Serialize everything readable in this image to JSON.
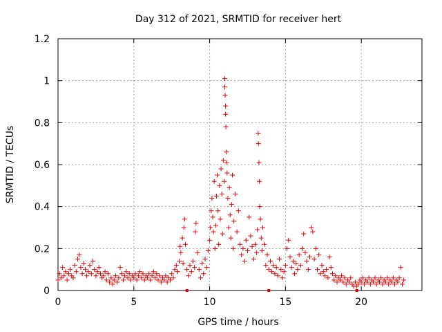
{
  "chart_data": {
    "type": "scatter",
    "title": "Day 312 of 2021, SRMTID for receiver hert",
    "xlabel": "GPS time / hours",
    "ylabel": "SRMTID / TECUs",
    "xlim": [
      0,
      24
    ],
    "ylim": [
      0,
      1.2
    ],
    "xticks": [
      0,
      5,
      10,
      15,
      20
    ],
    "xtick_labels": [
      "0",
      "5",
      "10",
      "15",
      "20"
    ],
    "yticks": [
      0,
      0.2,
      0.4,
      0.6,
      0.8,
      1.0,
      1.2
    ],
    "ytick_labels": [
      "0",
      "0.2",
      "0.4",
      "0.6",
      "0.8",
      "1",
      "1.2"
    ],
    "grid": true,
    "marker": "+",
    "colors": {
      "series": "#e00000",
      "grid": "#a0a0a0",
      "axes": "#000000"
    },
    "series": [
      {
        "name": "SRMTID",
        "points": [
          [
            0.0,
            0.05
          ],
          [
            0.1,
            0.08
          ],
          [
            0.2,
            0.06
          ],
          [
            0.3,
            0.11
          ],
          [
            0.4,
            0.07
          ],
          [
            0.5,
            0.09
          ],
          [
            0.6,
            0.05
          ],
          [
            0.7,
            0.08
          ],
          [
            0.8,
            0.1
          ],
          [
            0.9,
            0.07
          ],
          [
            1.0,
            0.06
          ],
          [
            1.1,
            0.12
          ],
          [
            1.2,
            0.09
          ],
          [
            1.3,
            0.15
          ],
          [
            1.4,
            0.17
          ],
          [
            1.5,
            0.11
          ],
          [
            1.6,
            0.08
          ],
          [
            1.7,
            0.13
          ],
          [
            1.8,
            0.1
          ],
          [
            1.9,
            0.07
          ],
          [
            2.0,
            0.09
          ],
          [
            2.1,
            0.12
          ],
          [
            2.2,
            0.08
          ],
          [
            2.3,
            0.14
          ],
          [
            2.4,
            0.1
          ],
          [
            2.5,
            0.07
          ],
          [
            2.6,
            0.09
          ],
          [
            2.7,
            0.11
          ],
          [
            2.8,
            0.08
          ],
          [
            2.9,
            0.06
          ],
          [
            3.0,
            0.07
          ],
          [
            3.1,
            0.09
          ],
          [
            3.2,
            0.05
          ],
          [
            3.3,
            0.08
          ],
          [
            3.4,
            0.04
          ],
          [
            3.5,
            0.06
          ],
          [
            3.6,
            0.03
          ],
          [
            3.7,
            0.05
          ],
          [
            3.8,
            0.07
          ],
          [
            3.9,
            0.04
          ],
          [
            4.0,
            0.06
          ],
          [
            4.1,
            0.11
          ],
          [
            4.2,
            0.08
          ],
          [
            4.3,
            0.05
          ],
          [
            4.4,
            0.07
          ],
          [
            4.5,
            0.09
          ],
          [
            4.6,
            0.06
          ],
          [
            4.7,
            0.08
          ],
          [
            4.8,
            0.05
          ],
          [
            4.9,
            0.07
          ],
          [
            5.0,
            0.06
          ],
          [
            5.1,
            0.08
          ],
          [
            5.2,
            0.05
          ],
          [
            5.3,
            0.07
          ],
          [
            5.4,
            0.09
          ],
          [
            5.5,
            0.06
          ],
          [
            5.6,
            0.08
          ],
          [
            5.7,
            0.05
          ],
          [
            5.8,
            0.07
          ],
          [
            5.9,
            0.06
          ],
          [
            6.0,
            0.08
          ],
          [
            6.1,
            0.05
          ],
          [
            6.2,
            0.07
          ],
          [
            6.3,
            0.09
          ],
          [
            6.4,
            0.06
          ],
          [
            6.5,
            0.08
          ],
          [
            6.6,
            0.05
          ],
          [
            6.7,
            0.07
          ],
          [
            6.8,
            0.04
          ],
          [
            6.9,
            0.06
          ],
          [
            7.0,
            0.05
          ],
          [
            7.1,
            0.07
          ],
          [
            7.2,
            0.04
          ],
          [
            7.3,
            0.06
          ],
          [
            7.4,
            0.05
          ],
          [
            7.5,
            0.08
          ],
          [
            7.6,
            0.06
          ],
          [
            7.7,
            0.1
          ],
          [
            7.8,
            0.12
          ],
          [
            7.9,
            0.09
          ],
          [
            8.0,
            0.14
          ],
          [
            8.05,
            0.21
          ],
          [
            8.1,
            0.18
          ],
          [
            8.2,
            0.25
          ],
          [
            8.25,
            0.13
          ],
          [
            8.3,
            0.3
          ],
          [
            8.35,
            0.34
          ],
          [
            8.4,
            0.22
          ],
          [
            8.5,
            0.1
          ],
          [
            8.6,
            0.07
          ],
          [
            8.7,
            0.12
          ],
          [
            8.8,
            0.09
          ],
          [
            8.9,
            0.14
          ],
          [
            9.0,
            0.11
          ],
          [
            9.05,
            0.28
          ],
          [
            9.1,
            0.32
          ],
          [
            9.2,
            0.18
          ],
          [
            9.3,
            0.1
          ],
          [
            9.4,
            0.06
          ],
          [
            9.5,
            0.13
          ],
          [
            9.6,
            0.08
          ],
          [
            9.7,
            0.15
          ],
          [
            9.8,
            0.11
          ],
          [
            9.9,
            0.19
          ],
          [
            10.0,
            0.24
          ],
          [
            10.05,
            0.3
          ],
          [
            10.1,
            0.38
          ],
          [
            10.15,
            0.44
          ],
          [
            10.2,
            0.35
          ],
          [
            10.25,
            0.28
          ],
          [
            10.3,
            0.52
          ],
          [
            10.35,
            0.2
          ],
          [
            10.4,
            0.31
          ],
          [
            10.45,
            0.45
          ],
          [
            10.5,
            0.55
          ],
          [
            10.55,
            0.38
          ],
          [
            10.6,
            0.22
          ],
          [
            10.65,
            0.5
          ],
          [
            10.7,
            0.34
          ],
          [
            10.75,
            0.58
          ],
          [
            10.8,
            0.46
          ],
          [
            10.85,
            0.27
          ],
          [
            10.9,
            0.62
          ],
          [
            10.95,
            0.52
          ],
          [
            11.0,
            1.01
          ],
          [
            11.0,
            0.97
          ],
          [
            11.02,
            0.93
          ],
          [
            11.05,
            0.88
          ],
          [
            11.05,
            0.84
          ],
          [
            11.07,
            0.78
          ],
          [
            11.1,
            0.66
          ],
          [
            11.12,
            0.61
          ],
          [
            11.15,
            0.56
          ],
          [
            11.2,
            0.44
          ],
          [
            11.25,
            0.3
          ],
          [
            11.3,
            0.49
          ],
          [
            11.35,
            0.36
          ],
          [
            11.4,
            0.25
          ],
          [
            11.45,
            0.41
          ],
          [
            11.5,
            0.55
          ],
          [
            11.55,
            0.2
          ],
          [
            11.6,
            0.33
          ],
          [
            11.7,
            0.46
          ],
          [
            11.8,
            0.28
          ],
          [
            11.9,
            0.38
          ],
          [
            12.0,
            0.22
          ],
          [
            12.1,
            0.17
          ],
          [
            12.2,
            0.2
          ],
          [
            12.3,
            0.14
          ],
          [
            12.4,
            0.24
          ],
          [
            12.5,
            0.19
          ],
          [
            12.6,
            0.35
          ],
          [
            12.7,
            0.26
          ],
          [
            12.8,
            0.21
          ],
          [
            12.9,
            0.15
          ],
          [
            13.0,
            0.22
          ],
          [
            13.1,
            0.18
          ],
          [
            13.15,
            0.29
          ],
          [
            13.2,
            0.75
          ],
          [
            13.22,
            0.7
          ],
          [
            13.25,
            0.61
          ],
          [
            13.28,
            0.52
          ],
          [
            13.3,
            0.4
          ],
          [
            13.35,
            0.34
          ],
          [
            13.4,
            0.25
          ],
          [
            13.45,
            0.19
          ],
          [
            13.5,
            0.3
          ],
          [
            13.6,
            0.22
          ],
          [
            13.7,
            0.12
          ],
          [
            13.8,
            0.17
          ],
          [
            13.9,
            0.1
          ],
          [
            14.0,
            0.14
          ],
          [
            14.1,
            0.09
          ],
          [
            14.2,
            0.12
          ],
          [
            14.3,
            0.08
          ],
          [
            14.4,
            0.11
          ],
          [
            14.5,
            0.07
          ],
          [
            14.6,
            0.15
          ],
          [
            14.7,
            0.1
          ],
          [
            14.8,
            0.06
          ],
          [
            14.9,
            0.09
          ],
          [
            15.0,
            0.12
          ],
          [
            15.1,
            0.2
          ],
          [
            15.2,
            0.24
          ],
          [
            15.3,
            0.16
          ],
          [
            15.4,
            0.11
          ],
          [
            15.5,
            0.14
          ],
          [
            15.6,
            0.08
          ],
          [
            15.7,
            0.13
          ],
          [
            15.8,
            0.1
          ],
          [
            15.9,
            0.17
          ],
          [
            16.0,
            0.12
          ],
          [
            16.1,
            0.2
          ],
          [
            16.2,
            0.27
          ],
          [
            16.3,
            0.18
          ],
          [
            16.4,
            0.14
          ],
          [
            16.5,
            0.1
          ],
          [
            16.6,
            0.16
          ],
          [
            16.7,
            0.3
          ],
          [
            16.8,
            0.28
          ],
          [
            16.9,
            0.15
          ],
          [
            17.0,
            0.2
          ],
          [
            17.1,
            0.1
          ],
          [
            17.2,
            0.17
          ],
          [
            17.3,
            0.08
          ],
          [
            17.4,
            0.12
          ],
          [
            17.5,
            0.09
          ],
          [
            17.6,
            0.07
          ],
          [
            17.7,
            0.1
          ],
          [
            17.8,
            0.06
          ],
          [
            17.9,
            0.16
          ],
          [
            18.0,
            0.11
          ],
          [
            18.1,
            0.08
          ],
          [
            18.2,
            0.05
          ],
          [
            18.3,
            0.07
          ],
          [
            18.4,
            0.04
          ],
          [
            18.5,
            0.06
          ],
          [
            18.6,
            0.05
          ],
          [
            18.7,
            0.07
          ],
          [
            18.8,
            0.04
          ],
          [
            18.9,
            0.06
          ],
          [
            19.0,
            0.03
          ],
          [
            19.1,
            0.05
          ],
          [
            19.2,
            0.04
          ],
          [
            19.3,
            0.06
          ],
          [
            19.4,
            0.03
          ],
          [
            19.5,
            0.02
          ],
          [
            19.6,
            0.04
          ],
          [
            19.7,
            0.02
          ],
          [
            19.8,
            0.03
          ],
          [
            19.9,
            0.05
          ],
          [
            20.0,
            0.04
          ],
          [
            20.1,
            0.06
          ],
          [
            20.2,
            0.03
          ],
          [
            20.3,
            0.05
          ],
          [
            20.4,
            0.04
          ],
          [
            20.5,
            0.06
          ],
          [
            20.6,
            0.03
          ],
          [
            20.7,
            0.05
          ],
          [
            20.8,
            0.04
          ],
          [
            20.9,
            0.06
          ],
          [
            21.0,
            0.03
          ],
          [
            21.1,
            0.05
          ],
          [
            21.2,
            0.04
          ],
          [
            21.3,
            0.06
          ],
          [
            21.4,
            0.03
          ],
          [
            21.5,
            0.05
          ],
          [
            21.6,
            0.04
          ],
          [
            21.7,
            0.06
          ],
          [
            21.8,
            0.03
          ],
          [
            21.9,
            0.05
          ],
          [
            22.0,
            0.04
          ],
          [
            22.1,
            0.06
          ],
          [
            22.2,
            0.03
          ],
          [
            22.3,
            0.05
          ],
          [
            22.4,
            0.04
          ],
          [
            22.5,
            0.06
          ],
          [
            22.6,
            0.11
          ],
          [
            22.7,
            0.03
          ],
          [
            22.8,
            0.05
          ]
        ]
      }
    ],
    "axis_markers_x": [
      8.5,
      13.9,
      19.7
    ]
  }
}
